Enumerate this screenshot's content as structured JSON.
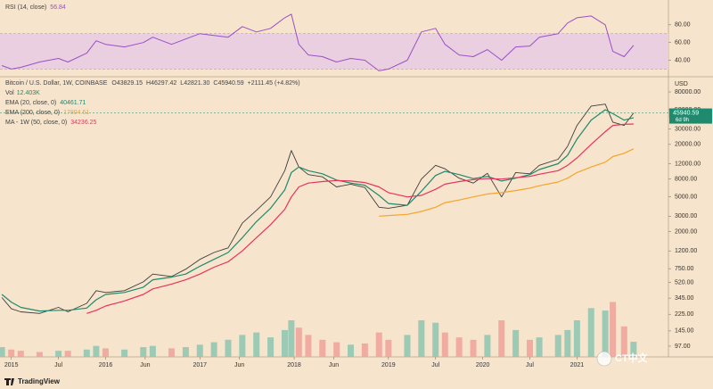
{
  "header": {
    "title": "Bitcoin / U.S. Dollar, 1W, COINBASE",
    "quote": [
      "O43829.15",
      "H46297.42",
      "L42821.30",
      "C45940.59",
      "+2111.45 (+4.82%)"
    ],
    "countdown": "6d 9h",
    "brand": "TradingView",
    "watermark": "CT中文"
  },
  "chart_data": [
    {
      "type": "line",
      "name": "RSI (14, close)",
      "x": [
        2014.9,
        2015.0,
        2015.1,
        2015.3,
        2015.5,
        2015.6,
        2015.8,
        2015.9,
        2016.0,
        2016.2,
        2016.4,
        2016.5,
        2016.7,
        2016.85,
        2017.0,
        2017.15,
        2017.3,
        2017.45,
        2017.6,
        2017.75,
        2017.9,
        2017.97,
        2018.05,
        2018.15,
        2018.3,
        2018.45,
        2018.6,
        2018.75,
        2018.9,
        2019.0,
        2019.2,
        2019.35,
        2019.5,
        2019.6,
        2019.75,
        2019.9,
        2020.05,
        2020.2,
        2020.35,
        2020.5,
        2020.6,
        2020.8,
        2020.9,
        2021.0,
        2021.15,
        2021.3,
        2021.38,
        2021.5,
        2021.6
      ],
      "values": [
        34,
        30,
        32,
        38,
        42,
        38,
        48,
        62,
        58,
        55,
        60,
        66,
        58,
        64,
        70,
        68,
        66,
        78,
        72,
        76,
        88,
        92,
        58,
        46,
        44,
        38,
        42,
        40,
        28,
        30,
        40,
        72,
        76,
        58,
        46,
        44,
        52,
        40,
        55,
        56,
        66,
        70,
        82,
        88,
        90,
        80,
        50,
        44,
        56.84
      ],
      "color": "#9b4fc6",
      "band": [
        30,
        70
      ],
      "band_color": "#e9cfe0",
      "xlim": [
        2014.88,
        2021.97
      ],
      "ylim": [
        23.4,
        106
      ],
      "yticks": [
        {
          "value": 80,
          "label": "80.00"
        },
        {
          "value": 60,
          "label": "60.00"
        },
        {
          "value": 40,
          "label": "40.00"
        }
      ]
    },
    {
      "type": "line",
      "log_scale": true,
      "axis_unit": "USD",
      "x": [
        2014.9,
        2015.0,
        2015.1,
        2015.3,
        2015.5,
        2015.6,
        2015.8,
        2015.9,
        2016.0,
        2016.2,
        2016.4,
        2016.5,
        2016.7,
        2016.85,
        2017.0,
        2017.15,
        2017.3,
        2017.45,
        2017.6,
        2017.75,
        2017.9,
        2017.97,
        2018.05,
        2018.15,
        2018.3,
        2018.45,
        2018.6,
        2018.75,
        2018.9,
        2019.0,
        2019.2,
        2019.35,
        2019.5,
        2019.6,
        2019.75,
        2019.9,
        2020.05,
        2020.2,
        2020.35,
        2020.5,
        2020.6,
        2020.8,
        2020.9,
        2021.0,
        2021.15,
        2021.3,
        2021.38,
        2021.5,
        2021.6
      ],
      "xlim": [
        2014.88,
        2021.97
      ],
      "xticks": [
        {
          "value": 2015,
          "label": "2015"
        },
        {
          "value": 2015.5,
          "label": "Jul"
        },
        {
          "value": 2016,
          "label": "2016"
        },
        {
          "value": 2016.42,
          "label": "Jun"
        },
        {
          "value": 2017,
          "label": "2017"
        },
        {
          "value": 2017.42,
          "label": "Jun"
        },
        {
          "value": 2018,
          "label": "2018"
        },
        {
          "value": 2018.42,
          "label": "Jun"
        },
        {
          "value": 2019,
          "label": "2019"
        },
        {
          "value": 2019.5,
          "label": "Jul"
        },
        {
          "value": 2020,
          "label": "2020"
        },
        {
          "value": 2020.5,
          "label": "Jul"
        },
        {
          "value": 2021,
          "label": "2021"
        }
      ],
      "ylim": [
        73,
        114000
      ],
      "yticks": [
        {
          "value": 80000,
          "label": "80000.00"
        },
        {
          "value": 50000,
          "label": "50000.00"
        },
        {
          "value": 30000,
          "label": "30000.00"
        },
        {
          "value": 20000,
          "label": "20000.00"
        },
        {
          "value": 12000,
          "label": "12000.00"
        },
        {
          "value": 8000,
          "label": "8000.00"
        },
        {
          "value": 5000,
          "label": "5000.00"
        },
        {
          "value": 3000,
          "label": "3000.00"
        },
        {
          "value": 2000,
          "label": "2000.00"
        },
        {
          "value": 1200,
          "label": "1200.00"
        },
        {
          "value": 750,
          "label": "750.00"
        },
        {
          "value": 520,
          "label": "520.00"
        },
        {
          "value": 345,
          "label": "345.00"
        },
        {
          "value": 225,
          "label": "225.00"
        },
        {
          "value": 145,
          "label": "145.00"
        },
        {
          "value": 97,
          "label": "97.00"
        }
      ],
      "y2lim": [
        0,
        60
      ],
      "series": [
        {
          "name": "BTCUSD",
          "color": "#3d3d3d",
          "values": [
            350,
            260,
            240,
            230,
            270,
            240,
            300,
            420,
            400,
            420,
            530,
            650,
            610,
            740,
            960,
            1150,
            1300,
            2500,
            3500,
            5000,
            10000,
            17000,
            11000,
            9000,
            8500,
            6500,
            7000,
            6400,
            3800,
            3700,
            4000,
            8000,
            11500,
            10500,
            8200,
            7200,
            9300,
            5000,
            9500,
            9200,
            11500,
            13500,
            19000,
            33000,
            55000,
            58000,
            36000,
            33000,
            45940.59
          ]
        },
        {
          "name": "EMA (20, close, 0)",
          "color": "#1f8a6d",
          "values": [
            380,
            310,
            270,
            245,
            250,
            250,
            265,
            330,
            380,
            400,
            460,
            560,
            600,
            650,
            800,
            960,
            1150,
            1700,
            2600,
            3700,
            6000,
            9500,
            11000,
            10000,
            9200,
            7800,
            7200,
            6800,
            5200,
            4200,
            4000,
            5800,
            8800,
            9800,
            9000,
            8100,
            8600,
            7600,
            8200,
            9000,
            10300,
            12000,
            15000,
            23000,
            38000,
            50000,
            45000,
            38000,
            40461.71
          ]
        },
        {
          "name": "EMA (200, close, 0)",
          "color": "#f4a52a",
          "values": [
            null,
            null,
            null,
            null,
            null,
            null,
            null,
            null,
            null,
            null,
            null,
            null,
            null,
            null,
            null,
            null,
            null,
            null,
            null,
            null,
            null,
            null,
            null,
            null,
            null,
            null,
            null,
            null,
            3000,
            3050,
            3150,
            3400,
            3800,
            4300,
            4600,
            5000,
            5400,
            5600,
            5900,
            6300,
            6700,
            7400,
            8200,
            9500,
            11000,
            12500,
            14500,
            15800,
            17804.61
          ]
        },
        {
          "name": "MA - 1W (50, close, 0)",
          "color": "#e8335c",
          "values": [
            null,
            null,
            null,
            null,
            null,
            null,
            230,
            250,
            280,
            320,
            380,
            440,
            500,
            560,
            650,
            780,
            900,
            1200,
            1700,
            2400,
            3600,
            5000,
            6500,
            7200,
            7500,
            7700,
            7600,
            7300,
            6500,
            5600,
            5000,
            5200,
            6100,
            7000,
            7500,
            7900,
            8100,
            8000,
            8300,
            8600,
            9100,
            10000,
            11500,
            14000,
            20000,
            28000,
            33000,
            34000,
            34236.25
          ]
        },
        {
          "name": "Vol",
          "type": "bar",
          "axis": "y2",
          "last_label": "12.403K",
          "up_color": "#8cc5b0",
          "down_color": "#f0a29a",
          "values": [
            8,
            6,
            5,
            4,
            5,
            5,
            6,
            9,
            7,
            6,
            8,
            9,
            7,
            8,
            10,
            12,
            14,
            18,
            20,
            16,
            22,
            30,
            24,
            18,
            14,
            12,
            10,
            11,
            20,
            14,
            18,
            30,
            28,
            20,
            16,
            14,
            18,
            30,
            22,
            14,
            16,
            18,
            22,
            30,
            40,
            38,
            45,
            25,
            12.403
          ]
        }
      ]
    }
  ]
}
